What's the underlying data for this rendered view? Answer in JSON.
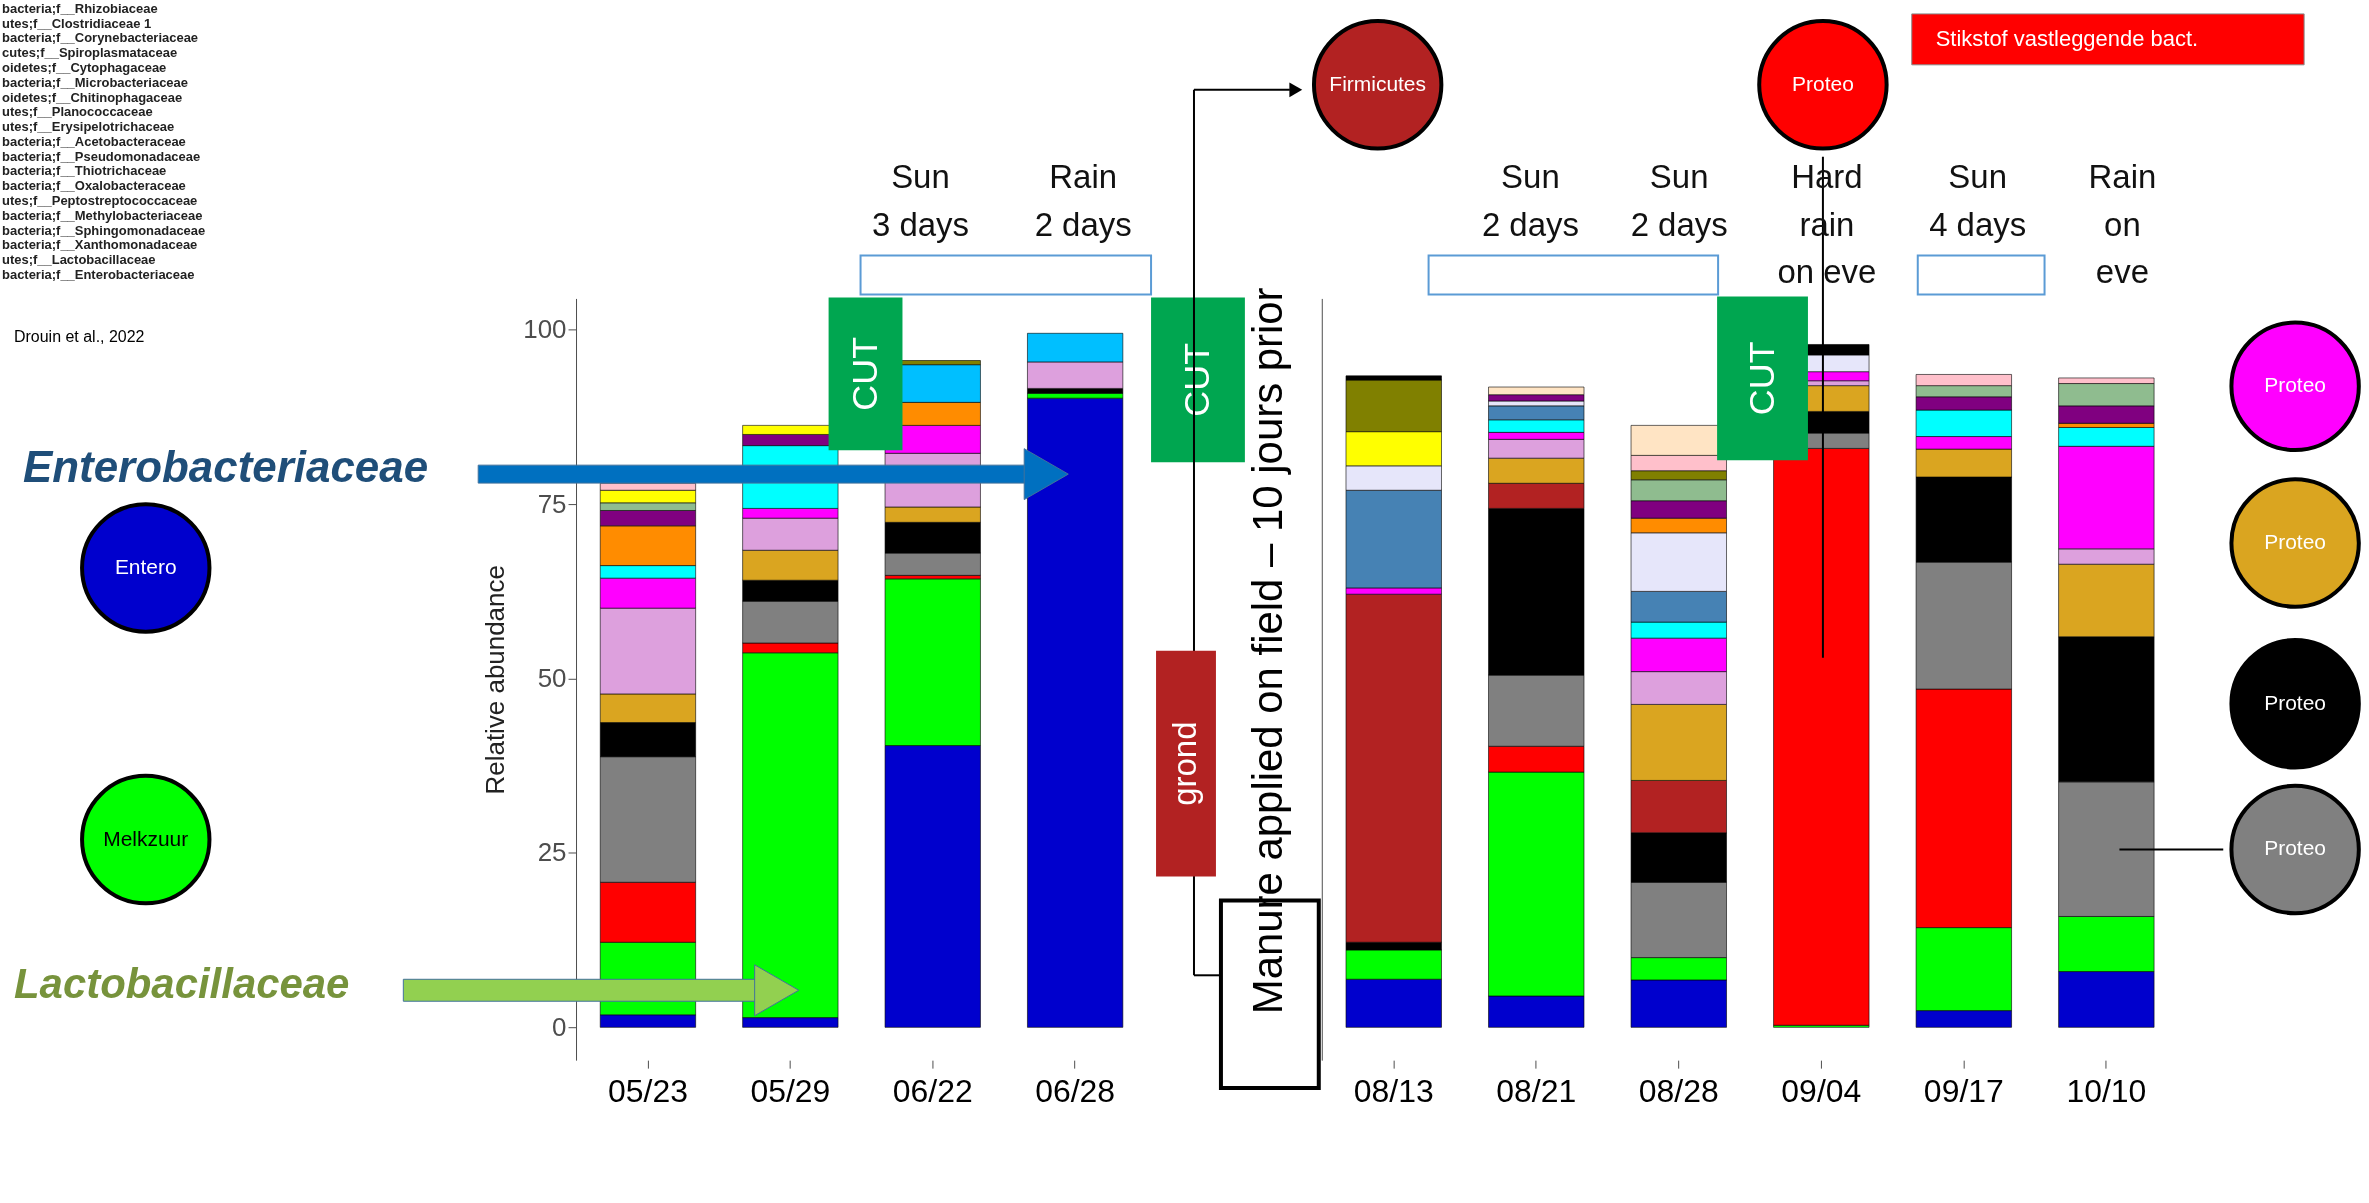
{
  "chart_data": [
    {
      "type": "bar",
      "stacked": true,
      "ylabel": "Relative abundance",
      "categories": [
        "05/23",
        "05/29",
        "06/22",
        "06/28"
      ],
      "ylim": [
        -4.7,
        104.5
      ],
      "yticks": [
        0,
        25,
        50,
        75,
        100
      ],
      "grid": false,
      "legend": false,
      "series": [
        {
          "color": "#0000cd",
          "values": [
            1.8,
            1.4,
            40.4,
            90.2
          ]
        },
        {
          "color": "#00ff00",
          "values": [
            10.4,
            52.3,
            23.9,
            0.7
          ]
        },
        {
          "color": "#ff0000",
          "values": [
            8.6,
            1.4,
            0.5,
            null
          ]
        },
        {
          "color": "#808080",
          "values": [
            18.0,
            6.0,
            3.2,
            null
          ]
        },
        {
          "color": "#000000",
          "values": [
            4.9,
            3.0,
            4.4,
            0.7
          ]
        },
        {
          "color": "#daa520",
          "values": [
            4.1,
            4.3,
            2.2,
            null
          ]
        },
        {
          "color": "#dda0dd",
          "values": [
            12.3,
            4.6,
            7.7,
            3.8
          ]
        },
        {
          "color": "#ff00ff",
          "values": [
            4.3,
            1.4,
            4.0,
            null
          ]
        },
        {
          "color": "#00ffff",
          "values": [
            1.8,
            9.0,
            null,
            null
          ]
        },
        {
          "color": "#ff8c00",
          "values": [
            5.7,
            null,
            3.3,
            null
          ]
        },
        {
          "color": "#800080",
          "values": [
            2.2,
            1.6,
            null,
            null
          ]
        },
        {
          "color": "#8fbc8f",
          "values": [
            1.1,
            null,
            null,
            null
          ]
        },
        {
          "color": "#ffff00",
          "values": [
            1.8,
            1.3,
            null,
            null
          ]
        },
        {
          "color": "#ffc0cb",
          "values": [
            1.0,
            null,
            null,
            null
          ]
        },
        {
          "color": "#00bfff",
          "values": [
            null,
            null,
            5.4,
            4.1
          ]
        },
        {
          "color": "#808000",
          "values": [
            null,
            null,
            0.6,
            null
          ]
        }
      ],
      "annotations": [
        "bacteria;f__Rhizobiaceae\nutes;f__Clostridiaceae 1\nbacteria;f__Corynebacteriaceae\ncutes;f__Spiroplasmataceae\noidetes;f__Cytophagaceae\nbacteria;f__Microbacteriaceae\noidetes;f__Chitinophagaceae\nutes;f__Planococcaceae\nutes;f__Erysipelotrichaceae\nbacteria;f__Acetobacteraceae\nbacteria;f__Pseudomonadaceae\nbacteria;f__Thiotrichaceae\nbacteria;f__Oxalobacteraceae\nutes;f__Peptostreptococcaceae\nbacteria;f__Methylobacteriaceae\nbacteria;f__Sphingomonadaceae\nbacteria;f__Xanthomonadaceae\nutes;f__Lactobacillaceae\nbacteria;f__Enterobacteriaceae",
        "Drouin et al., 2022",
        "Sun\n3 days",
        "Rain\n2 days",
        "CUT",
        "CUT",
        "Enterobacteriaceae",
        "Entero",
        "Melkzuur",
        "Lactobacillaceae",
        "grond",
        "Manure applied on field – 10 jours prior"
      ]
    },
    {
      "type": "bar",
      "stacked": true,
      "categories": [
        "08/13",
        "08/21",
        "08/28",
        "09/04",
        "09/17",
        "10/10"
      ],
      "ylim": [
        -4.7,
        104.5
      ],
      "yticks": [
        0,
        25,
        50,
        75,
        100
      ],
      "tick_labels": "x",
      "grid": false,
      "legend": false,
      "series": [
        {
          "color": "#0000cd",
          "values": [
            6.9,
            4.5,
            6.8,
            null,
            2.4,
            8.0
          ]
        },
        {
          "color": "#00ff00",
          "values": [
            4.2,
            32.1,
            3.2,
            0.3,
            11.9,
            7.9
          ]
        },
        {
          "color": "#ff0000",
          "values": [
            null,
            3.7,
            null,
            82.7,
            34.2,
            null
          ]
        },
        {
          "color": "#808080",
          "values": [
            null,
            10.2,
            10.8,
            2.2,
            18.2,
            19.3
          ]
        },
        {
          "color": "#000000",
          "values": [
            1.1,
            23.9,
            7.1,
            3.1,
            12.2,
            20.8
          ]
        },
        {
          "color": "#b22222",
          "values": [
            49.9,
            3.6,
            7.5,
            null,
            null,
            null
          ]
        },
        {
          "color": "#daa520",
          "values": [
            null,
            3.6,
            10.9,
            3.7,
            4.0,
            10.4
          ]
        },
        {
          "color": "#dda0dd",
          "values": [
            null,
            2.7,
            4.7,
            0.7,
            null,
            2.2
          ]
        },
        {
          "color": "#ff00ff",
          "values": [
            0.9,
            1.0,
            4.8,
            1.3,
            1.8,
            14.7
          ]
        },
        {
          "color": "#00ffff",
          "values": [
            null,
            1.8,
            2.3,
            null,
            3.8,
            2.7
          ]
        },
        {
          "color": "#4682b4",
          "values": [
            14.0,
            2.0,
            4.4,
            null,
            null,
            null
          ]
        },
        {
          "color": "#e6e6fa",
          "values": [
            3.5,
            0.7,
            8.4,
            2.4,
            null,
            null
          ]
        },
        {
          "color": "#ff8c00",
          "values": [
            null,
            null,
            2.1,
            null,
            null,
            0.6
          ]
        },
        {
          "color": "#800080",
          "values": [
            null,
            0.9,
            2.5,
            null,
            1.9,
            2.5
          ]
        },
        {
          "color": "#8fbc8f",
          "values": [
            null,
            null,
            3.0,
            null,
            1.6,
            3.2
          ]
        },
        {
          "color": "#ffff00",
          "values": [
            4.9,
            null,
            null,
            null,
            null,
            null
          ]
        },
        {
          "color": "#808000",
          "values": [
            7.4,
            null,
            1.3,
            null,
            null,
            null
          ]
        },
        {
          "color": "#ffc0cb",
          "values": [
            null,
            null,
            2.2,
            null,
            1.6,
            0.8
          ]
        },
        {
          "color": "#ffe4c4",
          "values": [
            null,
            1.1,
            4.3,
            null,
            null,
            null
          ]
        },
        {
          "color": "#000000",
          "values": [
            0.6,
            null,
            null,
            1.5,
            null,
            null
          ]
        }
      ],
      "annotations": [
        "Firmicutes",
        "Proteo",
        "Stikstof vastleggende bact.",
        "Sun\n2 days",
        "Sun\n2 days",
        "Hard\nrain\non eve",
        "Sun\n4 days",
        "Rain\non\neve",
        "CUT",
        "Proteo",
        "Proteo",
        "Proteo",
        "Proteo"
      ]
    }
  ]
}
